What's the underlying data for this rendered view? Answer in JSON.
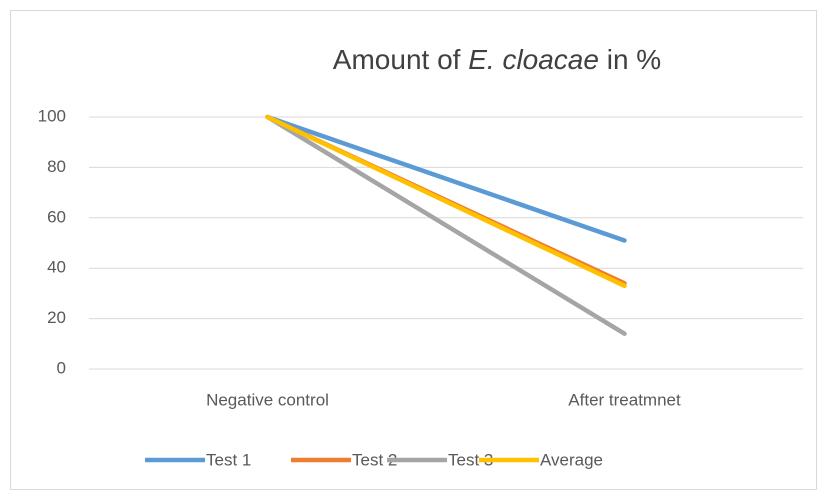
{
  "chart_data": {
    "type": "line",
    "title": [
      {
        "text": "Amount of "
      },
      {
        "text": "E. cloacae",
        "italic": true
      },
      {
        "text": " in %"
      }
    ],
    "categories": [
      "Negative control",
      "After treatmnet"
    ],
    "series": [
      {
        "name": "Test 1",
        "color": "#5b9bd5",
        "values": [
          100,
          51
        ]
      },
      {
        "name": "Test 2",
        "color": "#ed7d31",
        "values": [
          100,
          34
        ]
      },
      {
        "name": "Test 3",
        "color": "#a5a5a5",
        "values": [
          100,
          14
        ]
      },
      {
        "name": "Average",
        "color": "#ffc000",
        "values": [
          100,
          33
        ]
      }
    ],
    "ylim": [
      0,
      100
    ],
    "yticks": [
      0,
      20,
      40,
      60,
      80,
      100
    ],
    "grid": true,
    "legend": "bottom"
  }
}
